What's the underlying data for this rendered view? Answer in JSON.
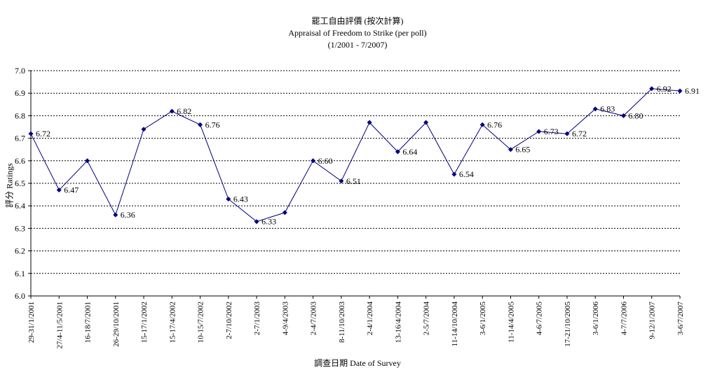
{
  "chart_data": {
    "type": "line",
    "title": "罷工自由評價 (按次計算)",
    "subtitle": "Appraisal of Freedom to Strike (per poll)",
    "period": "(1/2001 - 7/2007)",
    "xlabel": "調查日期 Date of Survey",
    "ylabel": "評分 Ratings",
    "ylim": [
      6.0,
      7.0
    ],
    "yticks": [
      "6.0",
      "6.1",
      "6.2",
      "6.3",
      "6.4",
      "6.5",
      "6.6",
      "6.7",
      "6.8",
      "6.9",
      "7.0"
    ],
    "grid": true,
    "series_color": "#000080",
    "categories": [
      "29-31/1/2001",
      "27/4-11/5/2001",
      "16-18/7/2001",
      "26-29/10/2001",
      "15-17/1/2002",
      "15-17/4/2002",
      "10-15/7/2002",
      "2-7/10/2002",
      "2-7/1/2003",
      "4-9/4/2003",
      "2-4/7/2003",
      "8-11/10/2003",
      "2-4/1/2004",
      "13-16/4/2004",
      "2-5/7/2004",
      "11-14/10/2004",
      "3-6/1/2005",
      "11-14/4/2005",
      "4-6/7/2005",
      "17-21/10/2005",
      "3-6/1/2006",
      "4-7/7/2006",
      "9-12/1/2007",
      "3-6/7/2007"
    ],
    "values": [
      6.72,
      6.47,
      6.6,
      6.36,
      6.74,
      6.82,
      6.76,
      6.43,
      6.33,
      6.37,
      6.6,
      6.51,
      6.77,
      6.64,
      6.77,
      6.54,
      6.76,
      6.65,
      6.73,
      6.72,
      6.83,
      6.8,
      6.92,
      6.91
    ],
    "data_labels": [
      "6.72",
      "6.47",
      "",
      "6.36",
      "",
      "6.82",
      "6.76",
      "6.43",
      "6.33",
      "",
      "6.60",
      "6.51",
      "",
      "6.64",
      "",
      "6.54",
      "6.76",
      "6.65",
      "6.73",
      "6.72",
      "6.83",
      "6.80",
      "6.92",
      "6.91"
    ]
  }
}
